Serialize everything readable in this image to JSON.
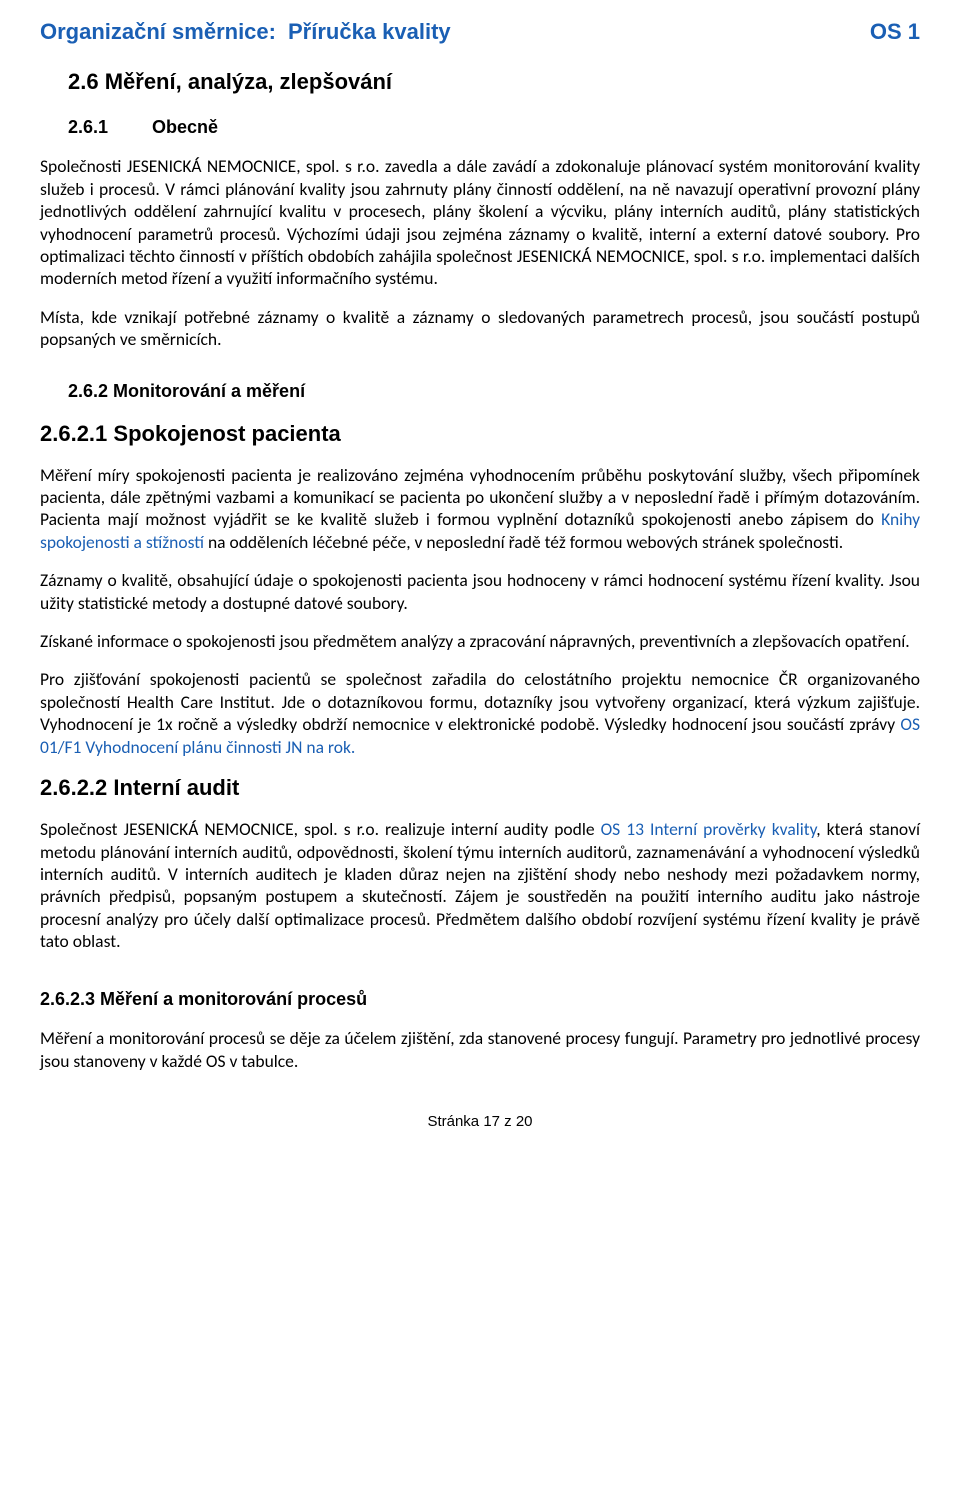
{
  "header": {
    "label": "Organizační směrnice:",
    "title": "Příručka kvality",
    "code": "OS 1"
  },
  "sections": {
    "h2": "2.6  Měření, analýza, zlepšování",
    "s261_num": "2.6.1",
    "s261_title": "Obecně",
    "p1": "Společnosti JESENICKÁ NEMOCNICE, spol. s r.o. zavedla a dále zavádí a zdokonaluje plánovací systém monitorování kvality služeb i procesů. V rámci plánování kvality jsou zahrnuty plány činností oddělení, na ně navazují operativní provozní plány jednotlivých oddělení zahrnující kvalitu v procesech, plány školení a výcviku, plány interních auditů, plány statistických vyhodnocení parametrů procesů. Výchozími údaji jsou zejména záznamy o kvalitě, interní a externí datové soubory. Pro optimalizaci těchto činností v příštích obdobích zahájila společnost JESENICKÁ NEMOCNICE, spol. s r.o. implementaci dalších moderních metod řízení a využití informačního systému.",
    "p2": "Místa, kde vznikají potřebné záznamy o kvalitě a záznamy o sledovaných parametrech procesů, jsou součástí postupů popsaných ve směrnicích.",
    "s262_num_title": "2.6.2   Monitorování a měření",
    "s2621_title": "2.6.2.1 Spokojenost pacienta",
    "p3a": "Měření míry spokojenosti pacienta je realizováno zejména vyhodnocením průběhu poskytování služby, všech připomínek pacienta, dále zpětnými vazbami a komunikací se pacienta po ukončení služby a v neposlední řadě i přímým dotazováním. Pacienta mají možnost vyjádřit se ke kvalitě služeb i formou vyplnění dotazníků spokojenosti anebo zápisem do ",
    "p3_link": "Knihy spokojenosti a stížností",
    "p3b": " na odděleních léčebné péče, v neposlední řadě též formou webových stránek společnosti.",
    "p4": "Záznamy o kvalitě, obsahující údaje o spokojenosti pacienta jsou hodnoceny v rámci hodnocení systému řízení kvality. Jsou užity statistické metody a dostupné datové soubory.",
    "p5": "Získané informace o spokojenosti jsou předmětem analýzy a zpracování nápravných, preventivních a zlepšovacích opatření.",
    "p6a": "Pro zjišťování spokojenosti pacientů se společnost zařadila do celostátního projektu nemocnice ČR organizovaného společností Health Care Institut. Jde o dotazníkovou formu, dotazníky jsou vytvořeny organizací, která výzkum zajišťuje. Vyhodnocení je 1x ročně a výsledky obdrží nemocnice v elektronické podobě. Výsledky hodnocení jsou součástí zprávy ",
    "p6_link": "OS 01/F1 Vyhodnocení plánu činnosti JN na rok.",
    "s2622_title": "2.6.2.2  Interní audit",
    "p7a": "Společnost JESENICKÁ NEMOCNICE, spol. s r.o. realizuje interní audity podle ",
    "p7_link": "OS 13  Interní prověrky kvality",
    "p7b": ", která stanoví metodu plánování interních auditů, odpovědnosti, školení týmu interních auditorů, zaznamenávání a vyhodnocení výsledků interních auditů. V interních auditech je kladen důraz nejen na zjištění shody nebo neshody mezi požadavkem normy, právních předpisů, popsaným postupem a skutečností. Zájem je soustředěn na použití interního auditu jako nástroje procesní analýzy pro účely další optimalizace procesů. Předmětem dalšího období rozvíjení systému řízení kvality je právě tato oblast.",
    "s2623_title": "2.6.2.3  Měření a monitorování procesů",
    "p8": "Měření a monitorování procesů se děje za účelem zjištění, zda stanovené procesy fungují. Parametry pro jednotlivé procesy jsou stanoveny v každé OS v tabulce."
  },
  "footer": {
    "page": "Stránka 17 z 20"
  }
}
